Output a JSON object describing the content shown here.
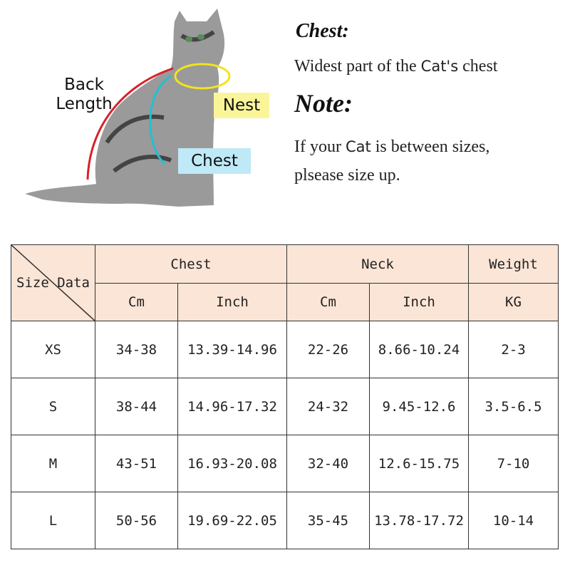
{
  "illustration": {
    "labels": {
      "back_length": "Back Length",
      "neck": "Nest",
      "chest": "Chest"
    },
    "colors": {
      "back_line": "#d8202a",
      "neck_ring": "#f2e41c",
      "chest_line": "#22c0d0",
      "neck_label_bg": "#fbf59a",
      "chest_label_bg": "#bfe9f7"
    }
  },
  "info": {
    "chest_title": "Chest:",
    "chest_desc_pre": "Widest part of the ",
    "chest_desc_cat": "Cat's",
    "chest_desc_post": " chest",
    "note_title": "Note:",
    "note_line1_pre": "If your ",
    "note_line1_cat": "Cat",
    "note_line1_post": " is between sizes,",
    "note_line2": "plsease size up."
  },
  "table": {
    "header_bg": "#fbe5d6",
    "corner": {
      "left": "Size",
      "right": "Data"
    },
    "groups": [
      "Chest",
      "Neck",
      "Weight"
    ],
    "subheaders": [
      "Cm",
      "Inch",
      "Cm",
      "Inch",
      "KG"
    ],
    "rows": [
      [
        "XS",
        "34-38",
        "13.39-14.96",
        "22-26",
        "8.66-10.24",
        "2-3"
      ],
      [
        "S",
        "38-44",
        "14.96-17.32",
        "24-32",
        "9.45-12.6",
        "3.5-6.5"
      ],
      [
        "M",
        "43-51",
        "16.93-20.08",
        "32-40",
        "12.6-15.75",
        "7-10"
      ],
      [
        "L",
        "50-56",
        "19.69-22.05",
        "35-45",
        "13.78-17.72",
        "10-14"
      ]
    ]
  }
}
